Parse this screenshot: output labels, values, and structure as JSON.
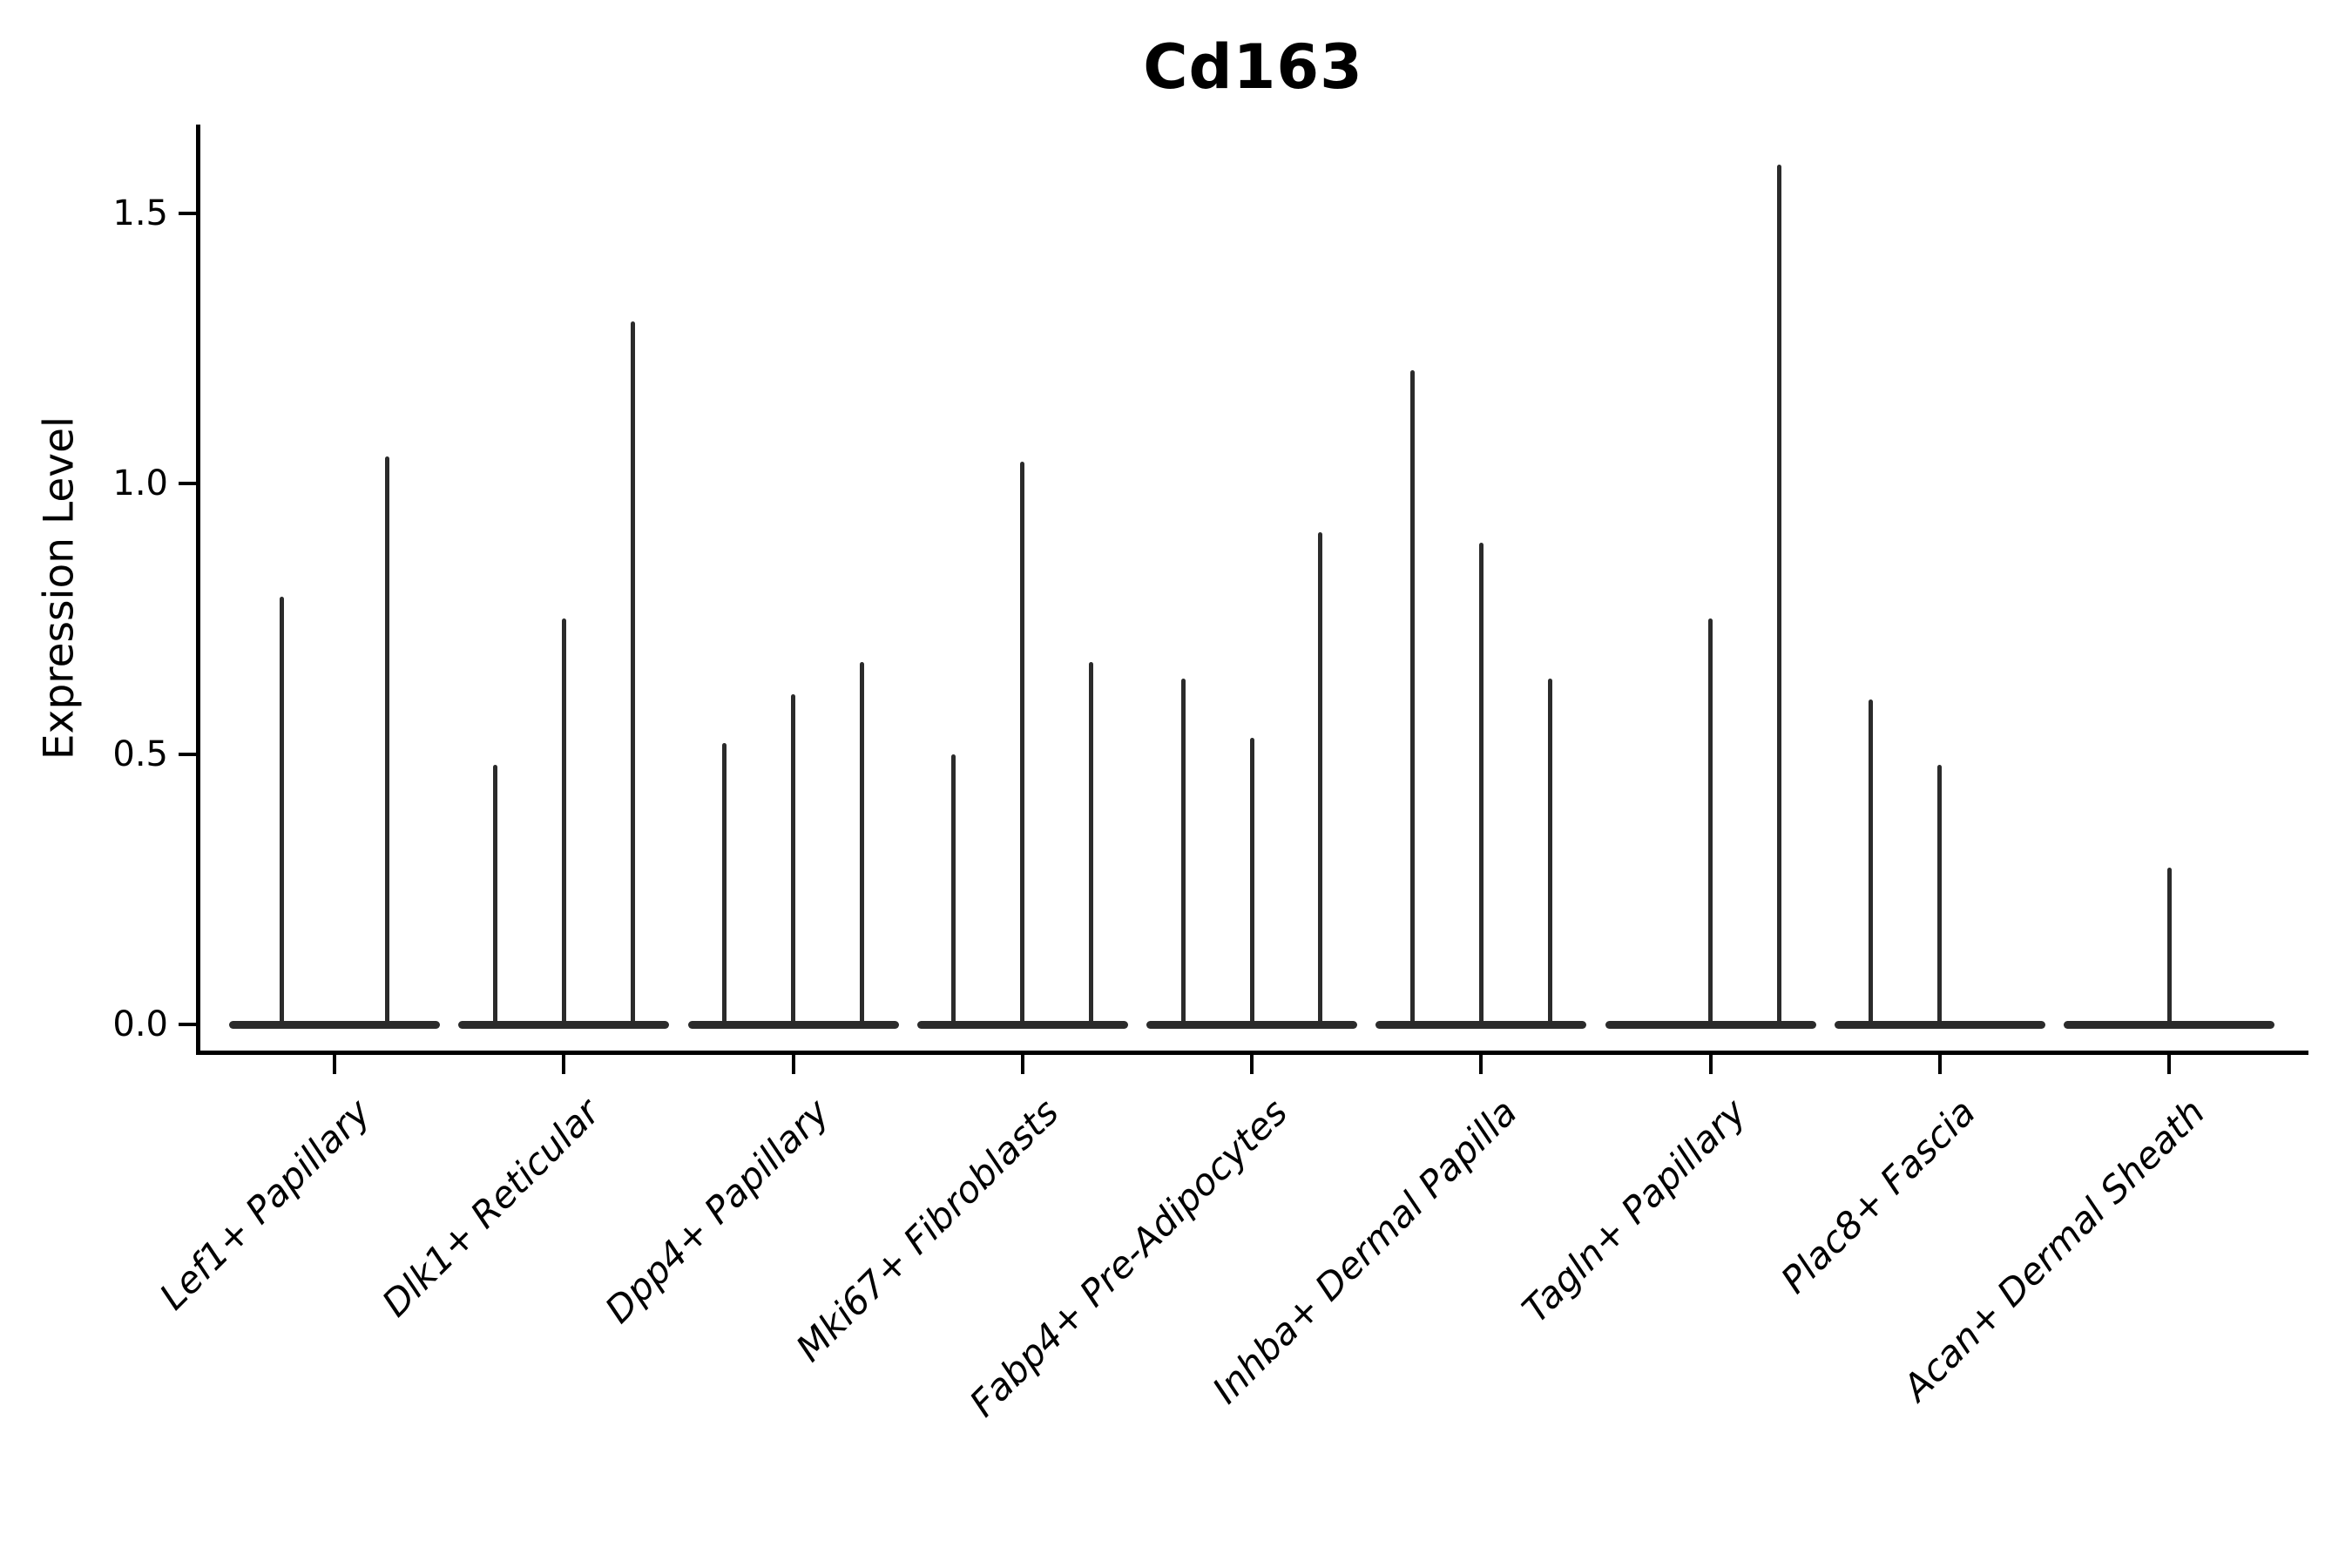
{
  "chart_data": {
    "type": "violin",
    "title": "Cd163",
    "ylabel": "Expression Level",
    "xlabel": "",
    "ylim": [
      -0.05,
      1.66
    ],
    "yticks": [
      0.0,
      0.5,
      1.0,
      1.5
    ],
    "ytick_labels": [
      "0.0",
      "0.5",
      "1.0",
      "1.5"
    ],
    "grid": false,
    "legend_position": "none",
    "violin_color": "#2b2b2b",
    "axis_color": "#000000",
    "categories": [
      "Lef1+ Papillary",
      "Dlk1+ Reticular",
      "Dpp4+ Papillary",
      "Mki67+ Fibroblasts",
      "Fabp4+ Pre-Adipocytes",
      "Inhba+ Dermal Papilla",
      "Tagln+ Papillary",
      "Plac8+ Fascia",
      "Acan+ Dermal Sheath"
    ],
    "groups": [
      {
        "category": "Lef1+ Papillary",
        "violins": [
          {
            "offset": -0.23,
            "peak": 0.79
          },
          {
            "offset": 0.23,
            "peak": 1.05
          }
        ]
      },
      {
        "category": "Dlk1+ Reticular",
        "violins": [
          {
            "offset": -0.3,
            "peak": 0.48
          },
          {
            "offset": 0.0,
            "peak": 0.75
          },
          {
            "offset": 0.3,
            "peak": 1.3
          }
        ]
      },
      {
        "category": "Dpp4+ Papillary",
        "violins": [
          {
            "offset": -0.3,
            "peak": 0.52
          },
          {
            "offset": 0.0,
            "peak": 0.61
          },
          {
            "offset": 0.3,
            "peak": 0.67
          }
        ]
      },
      {
        "category": "Mki67+ Fibroblasts",
        "violins": [
          {
            "offset": -0.3,
            "peak": 0.5
          },
          {
            "offset": 0.0,
            "peak": 1.04
          },
          {
            "offset": 0.3,
            "peak": 0.67
          }
        ]
      },
      {
        "category": "Fabp4+ Pre-Adipocytes",
        "violins": [
          {
            "offset": -0.3,
            "peak": 0.64
          },
          {
            "offset": 0.0,
            "peak": 0.53
          },
          {
            "offset": 0.3,
            "peak": 0.91
          }
        ]
      },
      {
        "category": "Inhba+ Dermal Papilla",
        "violins": [
          {
            "offset": -0.3,
            "peak": 1.21
          },
          {
            "offset": 0.0,
            "peak": 0.89
          },
          {
            "offset": 0.3,
            "peak": 0.64
          }
        ]
      },
      {
        "category": "Tagln+ Papillary",
        "violins": [
          {
            "offset": -0.3,
            "peak": 0.0
          },
          {
            "offset": 0.0,
            "peak": 0.75
          },
          {
            "offset": 0.3,
            "peak": 1.59
          }
        ]
      },
      {
        "category": "Plac8+ Fascia",
        "violins": [
          {
            "offset": -0.3,
            "peak": 0.6
          },
          {
            "offset": 0.0,
            "peak": 0.48
          },
          {
            "offset": 0.3,
            "peak": 0.0
          }
        ]
      },
      {
        "category": "Acan+ Dermal Sheath",
        "violins": [
          {
            "offset": -0.3,
            "peak": 0.0
          },
          {
            "offset": 0.0,
            "peak": 0.29
          },
          {
            "offset": 0.3,
            "peak": 0.0
          }
        ]
      }
    ]
  }
}
